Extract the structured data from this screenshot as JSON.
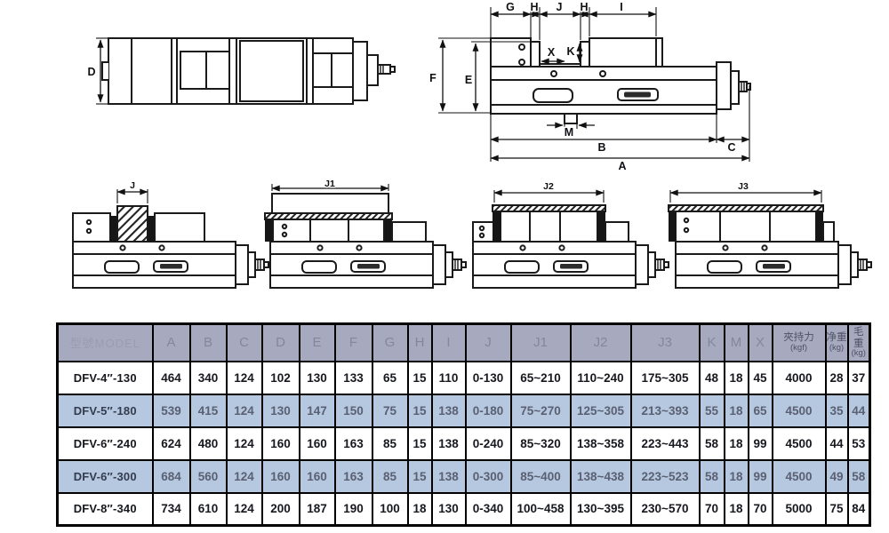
{
  "diagrams": {
    "top_view": {
      "d": "D"
    },
    "side_view": {
      "g": "G",
      "h1": "H",
      "j": "J",
      "h2": "H",
      "i": "I",
      "f": "F",
      "e": "E",
      "x": "X",
      "k": "K",
      "m": "M",
      "b": "B",
      "c": "C",
      "a": "A"
    },
    "configs": [
      "J",
      "J1",
      "J2",
      "J3"
    ]
  },
  "table": {
    "model_header": "型號MODEL",
    "headers": [
      "A",
      "B",
      "C",
      "D",
      "E",
      "F",
      "G",
      "H",
      "I",
      "J",
      "J1",
      "J2",
      "J3",
      "K",
      "M",
      "X"
    ],
    "unit_headers": [
      {
        "name": "夾持力",
        "unit": "(kgf)"
      },
      {
        "name": "净重",
        "unit": "(kg)"
      },
      {
        "name": "毛重",
        "unit": "(kg)"
      }
    ],
    "rows": [
      {
        "model": "DFV-4″-130",
        "highlight": false,
        "values": [
          "464",
          "340",
          "124",
          "102",
          "130",
          "133",
          "65",
          "15",
          "110",
          "0-130",
          "65~210",
          "110~240",
          "175~305",
          "48",
          "18",
          "45",
          "4000",
          "28",
          "37"
        ]
      },
      {
        "model": "DFV-5″-180",
        "highlight": true,
        "values": [
          "539",
          "415",
          "124",
          "130",
          "147",
          "150",
          "75",
          "15",
          "138",
          "0-180",
          "75~270",
          "125~305",
          "213~393",
          "55",
          "18",
          "65",
          "4500",
          "35",
          "44"
        ]
      },
      {
        "model": "DFV-6″-240",
        "highlight": false,
        "values": [
          "624",
          "480",
          "124",
          "160",
          "160",
          "163",
          "85",
          "15",
          "138",
          "0-240",
          "85~320",
          "138~358",
          "223~443",
          "58",
          "18",
          "99",
          "4500",
          "44",
          "53"
        ]
      },
      {
        "model": "DFV-6″-300",
        "highlight": true,
        "values": [
          "684",
          "560",
          "124",
          "160",
          "160",
          "163",
          "85",
          "15",
          "138",
          "0-300",
          "85~400",
          "138~438",
          "223~523",
          "58",
          "18",
          "99",
          "4500",
          "49",
          "58"
        ]
      },
      {
        "model": "DFV-8″-340",
        "highlight": false,
        "values": [
          "734",
          "610",
          "124",
          "200",
          "187",
          "190",
          "100",
          "18",
          "130",
          "0-340",
          "100~458",
          "130~395",
          "230~570",
          "70",
          "18",
          "70",
          "5000",
          "75",
          "84"
        ]
      }
    ]
  }
}
